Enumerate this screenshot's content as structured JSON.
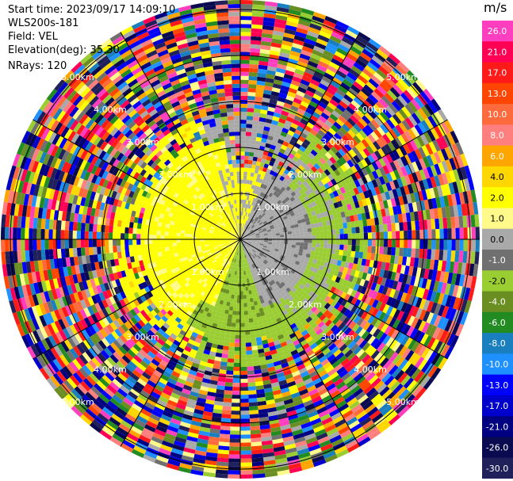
{
  "header": {
    "start_time": "Start time: 2023/09/17 14:09:10",
    "site": "WLS200s-181",
    "field": "Field: VEL",
    "elevation": "Elevation(deg): 35.30",
    "nrays": "NRays: 120"
  },
  "range_labels": [
    "1.00km",
    "2.00km",
    "3.00km",
    "4.00km",
    "5.00km"
  ],
  "colorbar": {
    "unit": "m/s",
    "ticks": [
      "26.0",
      "21.0",
      "17.0",
      "13.0",
      "10.0",
      "8.0",
      "6.0",
      "4.0",
      "2.0",
      "1.0",
      "0.0",
      "-1.0",
      "-2.0",
      "-4.0",
      "-6.0",
      "-8.0",
      "-10.0",
      "-13.0",
      "-17.0",
      "-21.0",
      "-26.0",
      "-30.0"
    ],
    "colors": [
      "#ff3fbf",
      "#ff0055",
      "#ff1a1a",
      "#ff4500",
      "#ff6a3d",
      "#ff7f7f",
      "#ffa500",
      "#ffd700",
      "#ffff00",
      "#fffa8a",
      "#a9a9a9",
      "#707070",
      "#9acd32",
      "#6b8e23",
      "#228b22",
      "#1a7fbf",
      "#1e90ff",
      "#0000ff",
      "#0000cd",
      "#000080",
      "#0a0a50",
      "#20205a"
    ]
  }
}
